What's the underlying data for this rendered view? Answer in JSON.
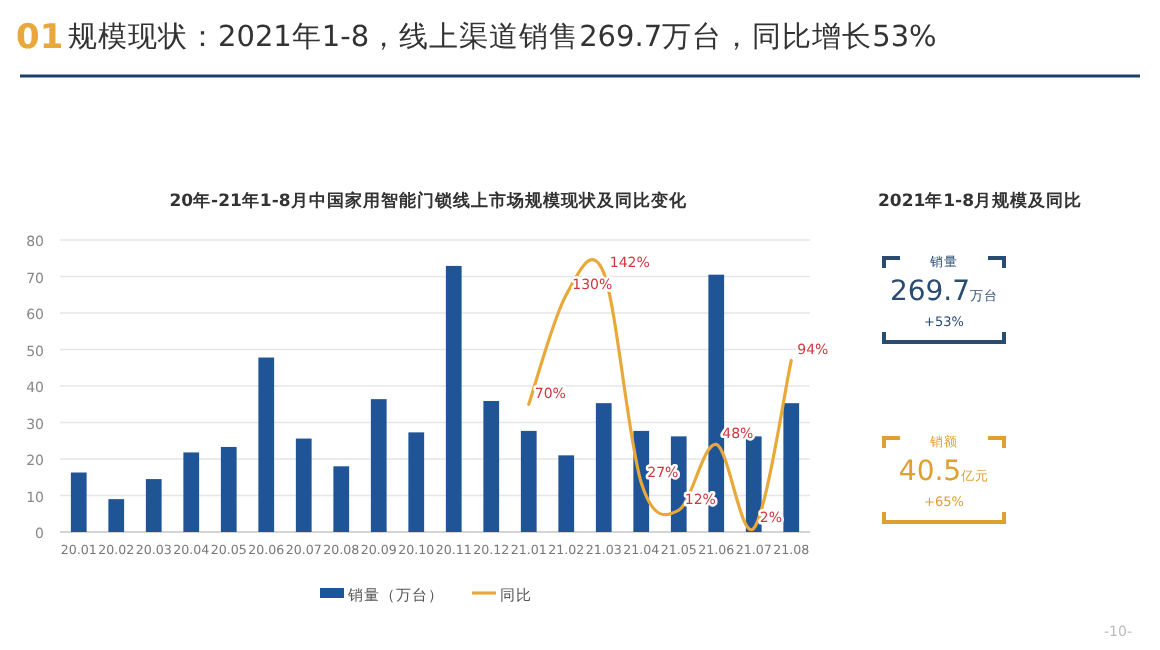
{
  "chart_data": [
    {
      "type": "bar",
      "title": "规模现状：2021年1-8，线上渠道销售269.7万台，同比增长53%",
      "subtitle": "20年-21年1-8月中国家用智能门锁线上市场规模现状及同比变化",
      "annotations": [
        "01",
        "-10-"
      ],
      "categories": [
        "20.01",
        "20.02",
        "20.03",
        "20.04",
        "20.05",
        "20.06",
        "20.07",
        "20.08",
        "20.09",
        "20.10",
        "20.11",
        "20.12",
        "21.01",
        "21.02",
        "21.03",
        "21.04",
        "21.05",
        "21.06",
        "21.07",
        "21.08"
      ],
      "series": [
        {
          "name": "销量（万台）",
          "type": "bar",
          "color": "#1f5597",
          "values": [
            16.3,
            9,
            14.5,
            21.8,
            23.3,
            47.8,
            25.6,
            18,
            36.4,
            27.3,
            72.9,
            35.9,
            27.7,
            21,
            35.3,
            27.7,
            26.2,
            70.5,
            26.2,
            35.3
          ]
        },
        {
          "name": "同比",
          "type": "line",
          "axis": "y2",
          "color": "#e8a93a",
          "values": [
            null,
            null,
            null,
            null,
            null,
            null,
            null,
            null,
            null,
            null,
            null,
            null,
            70,
            130,
            142,
            27,
            12,
            48,
            2,
            94
          ],
          "value_labels": [
            null,
            null,
            null,
            null,
            null,
            null,
            null,
            null,
            null,
            null,
            null,
            null,
            "70%",
            "130%",
            "142%",
            "27%",
            "12%",
            "48%",
            "2%",
            "94%"
          ]
        }
      ],
      "ylim": [
        0,
        80
      ],
      "yticks": [
        0,
        10,
        20,
        30,
        40,
        50,
        60,
        70,
        80
      ],
      "y2lim": [
        0,
        160
      ],
      "grid": "y",
      "legend": "bottom",
      "marker": "none",
      "line_style": "solid"
    },
    {
      "type": "other",
      "title": "2021年1-8月规模及同比",
      "annotations": [
        "销量",
        "269.7万台",
        "+53%",
        "销额",
        "40.5亿元",
        "+65%"
      ]
    }
  ]
}
